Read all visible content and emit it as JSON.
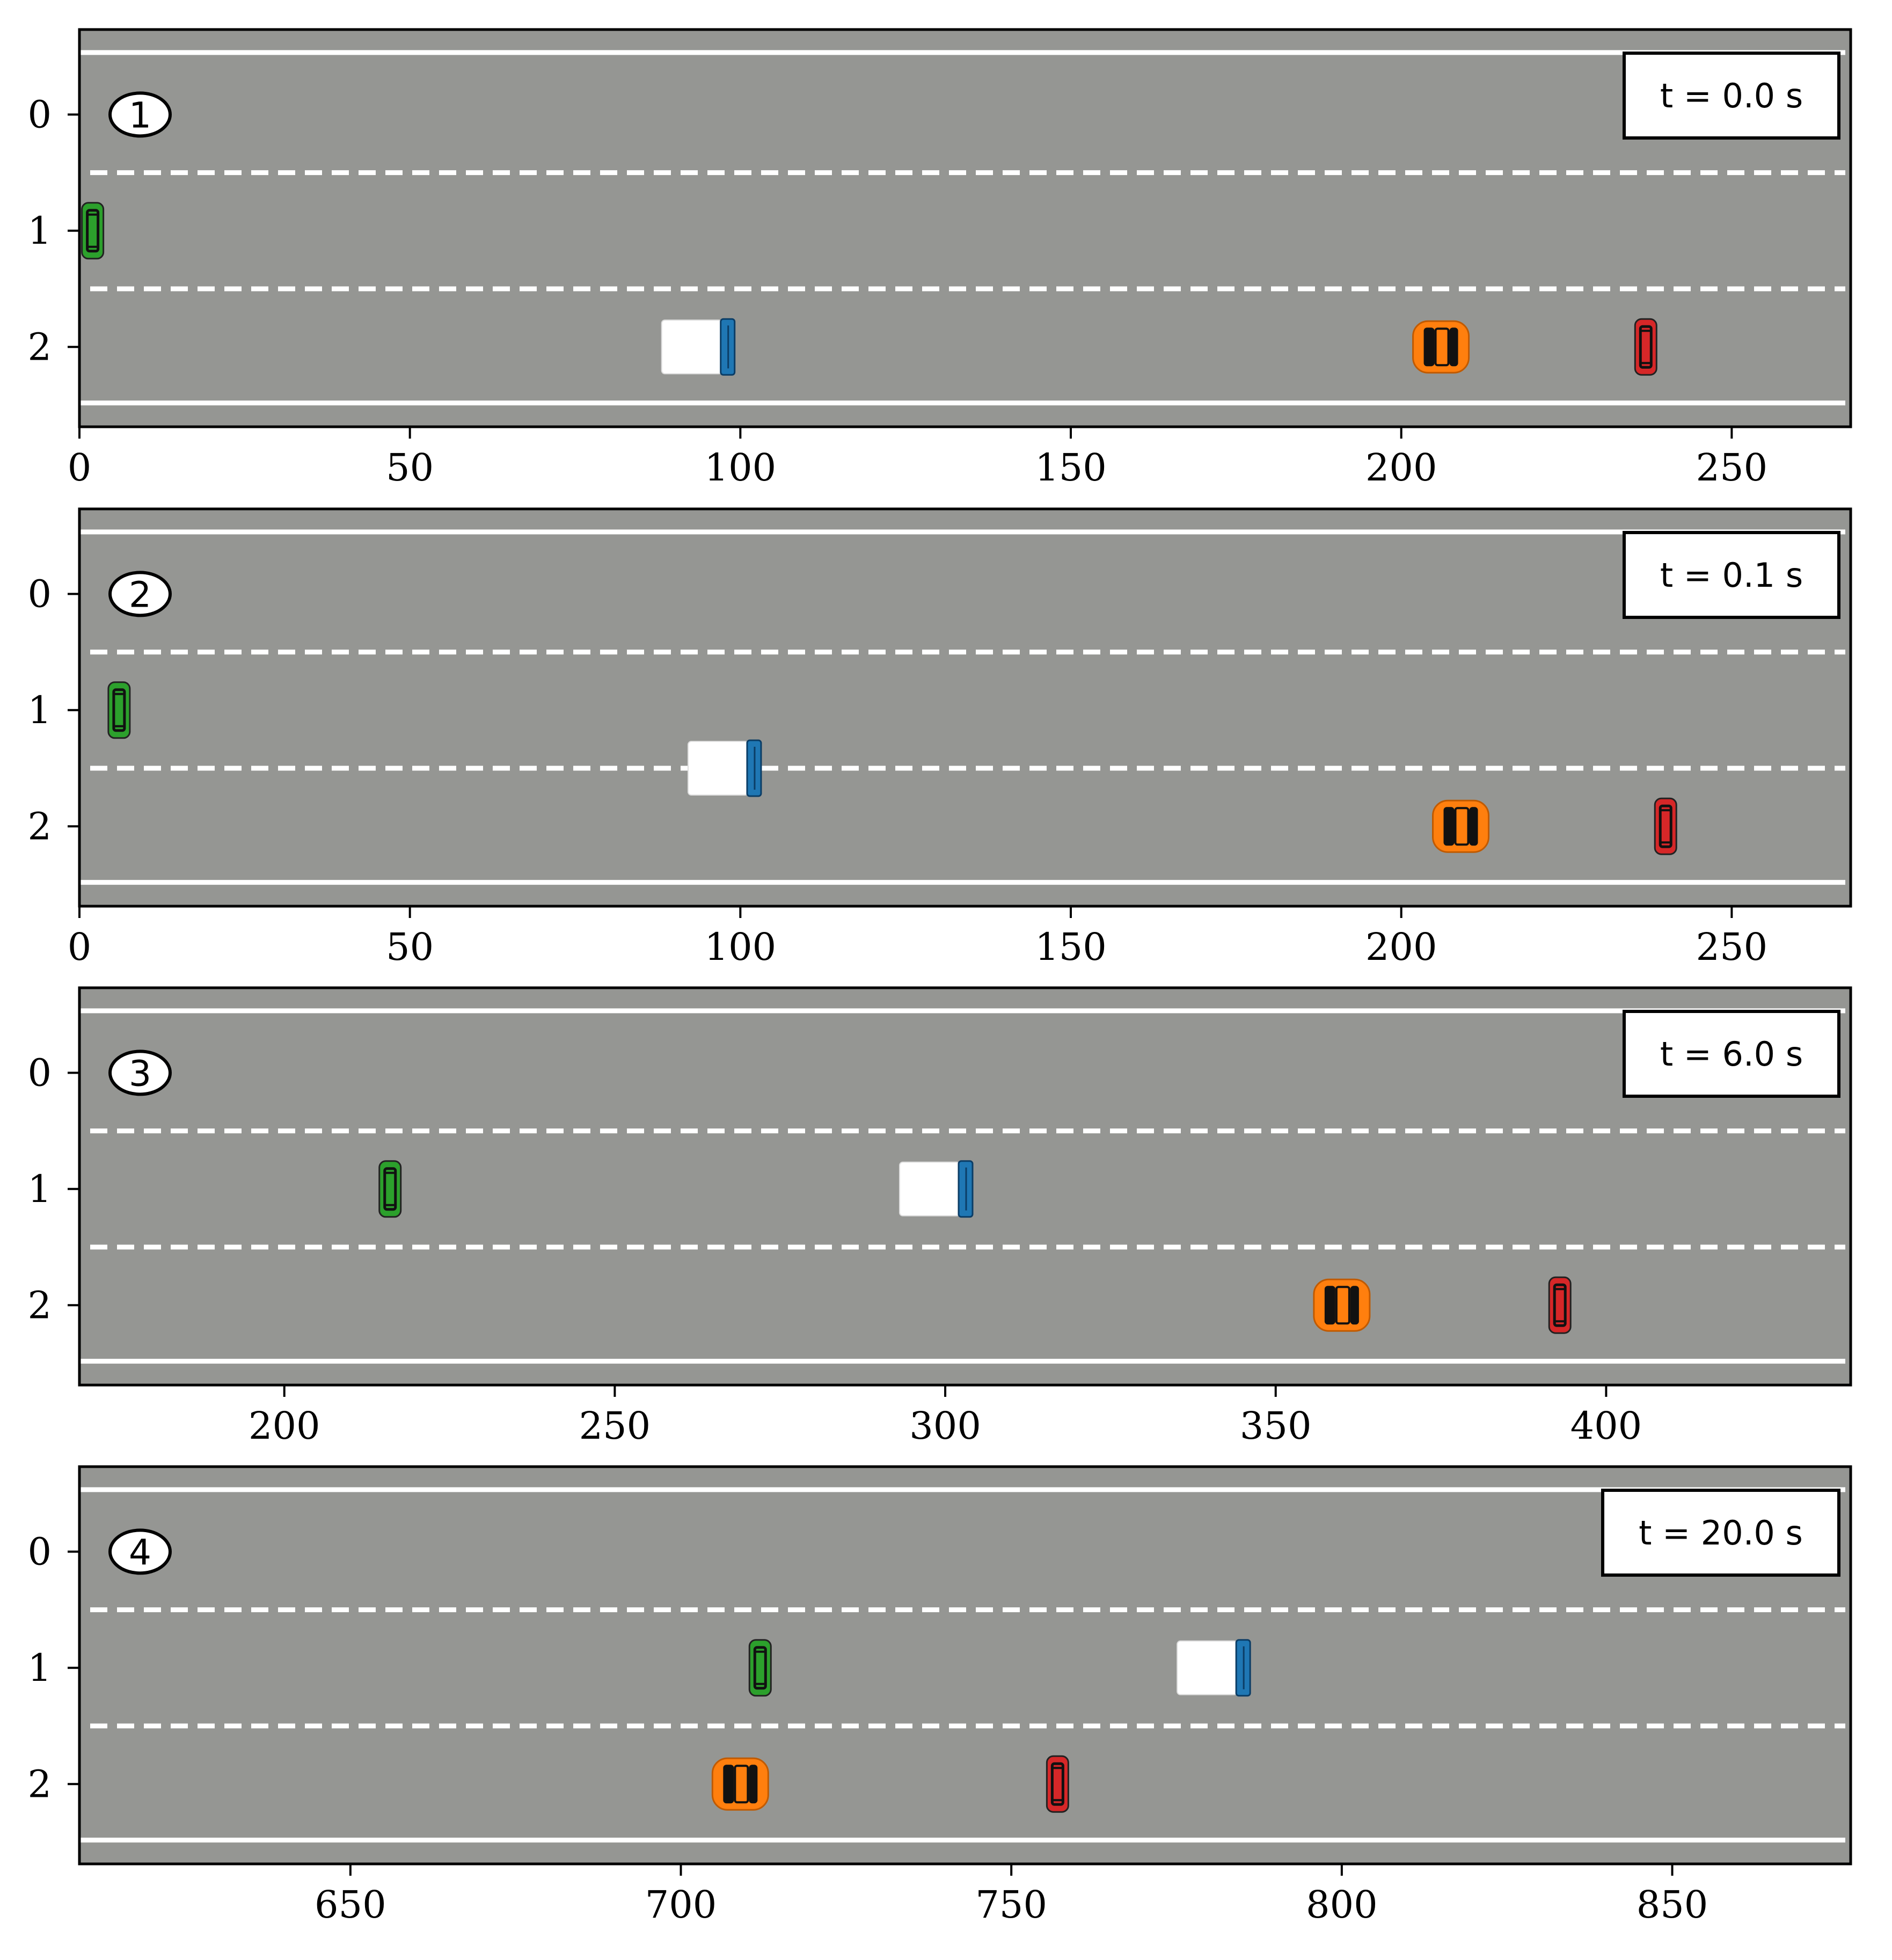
{
  "colors": {
    "road": "#959693",
    "lane_line": "#ffffff",
    "frame": "#000000",
    "truck_cab": "#1f77b4",
    "truck_box": "#ffffff",
    "car_green": "#2ca02c",
    "car_orange": "#ff7f0e",
    "car_red": "#d62728"
  },
  "lane_y_ticks": [
    "0",
    "1",
    "2"
  ],
  "chart_data": [
    {
      "type": "scatter",
      "panel_label": "1",
      "time_label": "t = 0.0 s",
      "xlim": [
        0,
        268
      ],
      "x_ticks": [
        "0",
        "50",
        "100",
        "150",
        "200",
        "250"
      ],
      "vehicles": [
        {
          "kind": "car",
          "color": "green",
          "x": 2,
          "lane": 1
        },
        {
          "kind": "truck",
          "color": "blue",
          "x": 98,
          "lane": 2
        },
        {
          "kind": "wide-car",
          "color": "orange",
          "x": 206,
          "lane": 2
        },
        {
          "kind": "car",
          "color": "red",
          "x": 237,
          "lane": 2
        }
      ]
    },
    {
      "type": "scatter",
      "panel_label": "2",
      "time_label": "t = 0.1 s",
      "xlim": [
        0,
        268
      ],
      "x_ticks": [
        "0",
        "50",
        "100",
        "150",
        "200",
        "250"
      ],
      "vehicles": [
        {
          "kind": "car",
          "color": "green",
          "x": 6,
          "lane": 1
        },
        {
          "kind": "truck",
          "color": "blue",
          "x": 102,
          "lane": 1.5
        },
        {
          "kind": "wide-car",
          "color": "orange",
          "x": 209,
          "lane": 2
        },
        {
          "kind": "car",
          "color": "red",
          "x": 240,
          "lane": 2
        }
      ]
    },
    {
      "type": "scatter",
      "panel_label": "3",
      "time_label": "t = 6.0 s",
      "xlim": [
        169,
        437
      ],
      "x_ticks": [
        "200",
        "250",
        "300",
        "350",
        "400"
      ],
      "vehicles": [
        {
          "kind": "car",
          "color": "green",
          "x": 216,
          "lane": 1
        },
        {
          "kind": "truck",
          "color": "blue",
          "x": 303,
          "lane": 1
        },
        {
          "kind": "wide-car",
          "color": "orange",
          "x": 360,
          "lane": 2
        },
        {
          "kind": "car",
          "color": "red",
          "x": 393,
          "lane": 2
        }
      ]
    },
    {
      "type": "scatter",
      "panel_label": "4",
      "time_label": "t = 20.0 s",
      "xlim": [
        609,
        877
      ],
      "x_ticks": [
        "650",
        "700",
        "750",
        "800",
        "850"
      ],
      "vehicles": [
        {
          "kind": "car",
          "color": "green",
          "x": 712,
          "lane": 1
        },
        {
          "kind": "truck",
          "color": "blue",
          "x": 785,
          "lane": 1
        },
        {
          "kind": "wide-car",
          "color": "orange",
          "x": 709,
          "lane": 2
        },
        {
          "kind": "car",
          "color": "red",
          "x": 757,
          "lane": 2
        }
      ]
    }
  ]
}
